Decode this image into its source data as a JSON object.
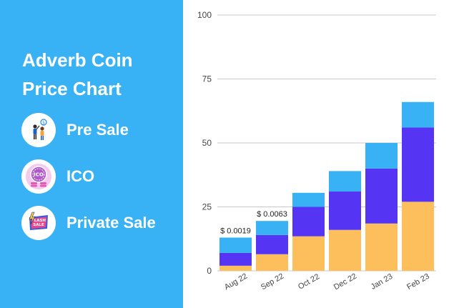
{
  "panel": {
    "title": "Adverb Coin Price Chart",
    "background_color": "#38b2f5"
  },
  "legend": [
    {
      "label": "Pre Sale",
      "icon": "people-presale-icon"
    },
    {
      "label": "ICO",
      "icon": "ico-coins-icon"
    },
    {
      "label": "Private Sale",
      "icon": "flash-sale-icon"
    }
  ],
  "chart_data": {
    "type": "bar",
    "stacked": true,
    "categories": [
      "Aug 22",
      "Sep 22",
      "Oct 22",
      "Dec 22",
      "Jan 23",
      "Feb 23"
    ],
    "series": [
      {
        "color": "#fdbe5c",
        "values": [
          2,
          6.5,
          13.5,
          16,
          18.5,
          27
        ]
      },
      {
        "color": "#5534f3",
        "values": [
          5,
          7.5,
          11.5,
          15,
          21.5,
          29
        ]
      },
      {
        "color": "#38b2f5",
        "values": [
          6,
          5.5,
          5.5,
          8,
          10,
          10
        ]
      }
    ],
    "data_labels": [
      "$ 0.0019",
      "$ 0.0063",
      "",
      "",
      "",
      ""
    ],
    "ylim": [
      0,
      100
    ],
    "yticks": [
      0,
      25,
      50,
      75,
      100
    ],
    "grid": true,
    "xlabel": "",
    "ylabel": ""
  }
}
